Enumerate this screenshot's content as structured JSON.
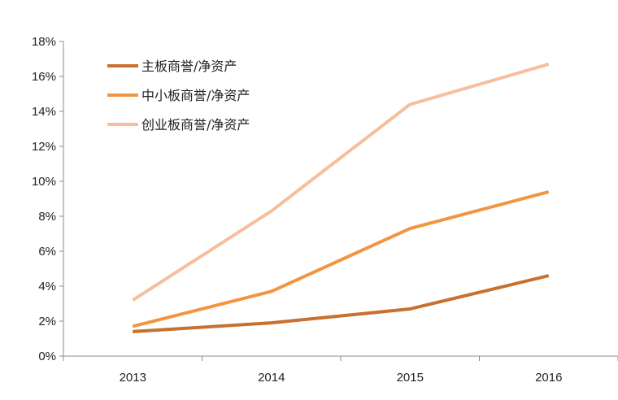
{
  "chart_data": {
    "type": "line",
    "title": "",
    "xlabel": "",
    "ylabel": "",
    "categories": [
      "2013",
      "2014",
      "2015",
      "2016"
    ],
    "ylim": [
      0,
      0.18
    ],
    "y_tick_values": [
      0,
      0.02,
      0.04,
      0.06,
      0.08,
      0.1,
      0.12,
      0.14,
      0.16,
      0.18
    ],
    "y_tick_labels": [
      "0%",
      "2%",
      "4%",
      "6%",
      "8%",
      "10%",
      "12%",
      "14%",
      "16%",
      "18%"
    ],
    "grid": false,
    "legend_position": "top-left",
    "series": [
      {
        "name": "主板商誉/净资产",
        "values": [
          0.014,
          0.019,
          0.027,
          0.046
        ],
        "color": "#C8702F"
      },
      {
        "name": "中小板商誉/净资产",
        "values": [
          0.017,
          0.037,
          0.073,
          0.094
        ],
        "color": "#F29540"
      },
      {
        "name": "创业板商誉/净资产",
        "values": [
          0.032,
          0.083,
          0.144,
          0.167
        ],
        "color": "#F6BF9C"
      }
    ]
  }
}
